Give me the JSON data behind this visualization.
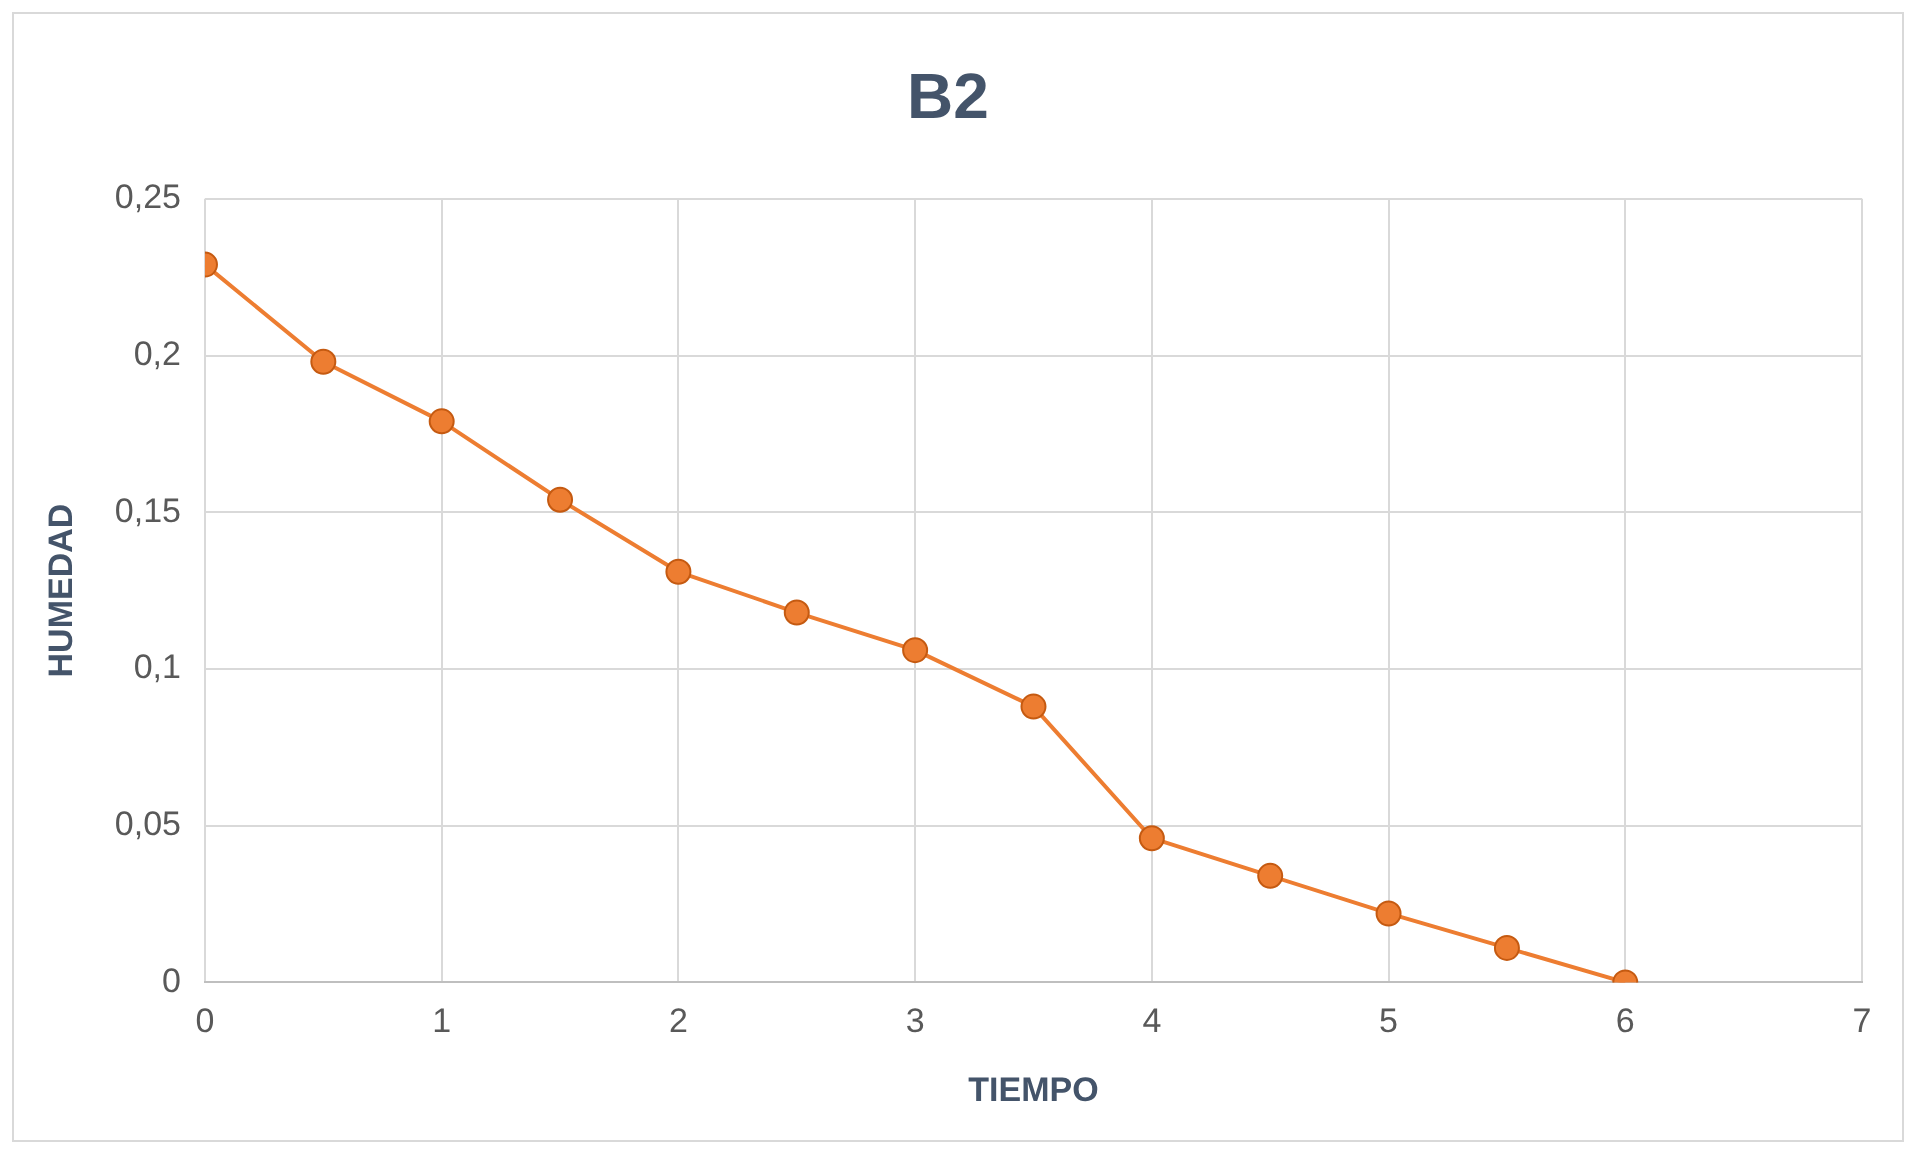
{
  "chart_data": {
    "type": "line",
    "title": "B2",
    "xlabel": "TIEMPO",
    "ylabel": "HUMEDAD",
    "x": [
      0,
      0.5,
      1,
      1.5,
      2,
      2.5,
      3,
      3.5,
      4,
      4.5,
      5,
      5.5,
      6
    ],
    "series": [
      {
        "color": "#ed7d31",
        "values": [
          0.229,
          0.198,
          0.179,
          0.154,
          0.131,
          0.118,
          0.106,
          0.088,
          0.046,
          0.034,
          0.022,
          0.011,
          0
        ]
      }
    ],
    "xlim": [
      0,
      7
    ],
    "xticks": [
      0,
      1,
      2,
      3,
      4,
      5,
      6,
      7
    ],
    "ylim": [
      0,
      0.25
    ],
    "yticks": [
      0,
      {
        "value": 0.05,
        "label": "0,05"
      },
      {
        "value": 0.1,
        "label": "0,1"
      },
      {
        "value": 0.15,
        "label": "0,15"
      },
      {
        "value": 0.2,
        "label": "0,2"
      },
      {
        "value": 0.25,
        "label": "0,25"
      }
    ],
    "grid": true,
    "legend": false,
    "marker": "circle",
    "line_style": "solid"
  }
}
